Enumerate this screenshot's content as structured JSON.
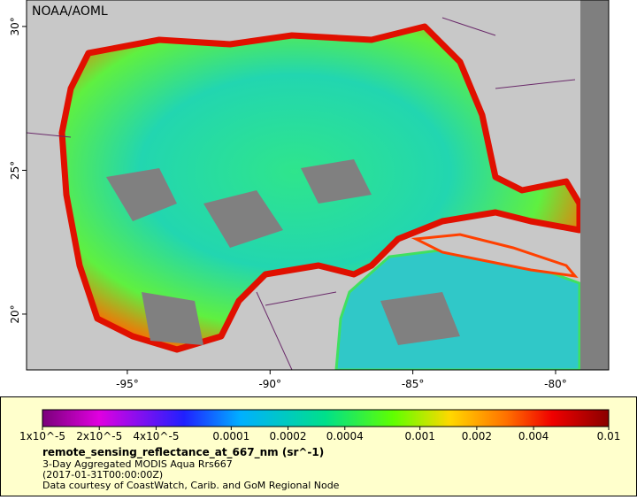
{
  "map": {
    "label": "NOAA/AOML",
    "lonlim": [
      -98.53,
      -78.14
    ],
    "latlim": [
      18.06,
      30.92
    ],
    "lon_ticks": [
      {
        "value": -95,
        "label": "-95°"
      },
      {
        "value": -90,
        "label": "-90°"
      },
      {
        "value": -85,
        "label": "-85°"
      },
      {
        "value": -80,
        "label": "-80°"
      }
    ],
    "lat_ticks": [
      {
        "value": 20,
        "label": "20°"
      },
      {
        "value": 25,
        "label": "25°"
      },
      {
        "value": 30,
        "label": "30°"
      }
    ]
  },
  "colorbar": {
    "scale": "log",
    "lim": [
      1e-05,
      0.01
    ],
    "ticks": [
      {
        "value": 1e-05,
        "label": "1x10^-5"
      },
      {
        "value": 2e-05,
        "label": "2x10^-5"
      },
      {
        "value": 4e-05,
        "label": "4x10^-5"
      },
      {
        "value": 0.0001,
        "label": "0.0001"
      },
      {
        "value": 0.0002,
        "label": "0.0002"
      },
      {
        "value": 0.0004,
        "label": "0.0004"
      },
      {
        "value": 0.001,
        "label": "0.001"
      },
      {
        "value": 0.002,
        "label": "0.002"
      },
      {
        "value": 0.004,
        "label": "0.004"
      },
      {
        "value": 0.01,
        "label": "0.01"
      }
    ]
  },
  "caption": {
    "variable": "remote_sensing_reflectance_at_667_nm (sr^-1)",
    "lines": [
      "3-Day Aggregated MODIS Aqua Rrs667",
      "(2017-01-31T00:00:00Z)",
      "Data courtesy of CoastWatch, Carib. and GoM Regional Node"
    ]
  }
}
